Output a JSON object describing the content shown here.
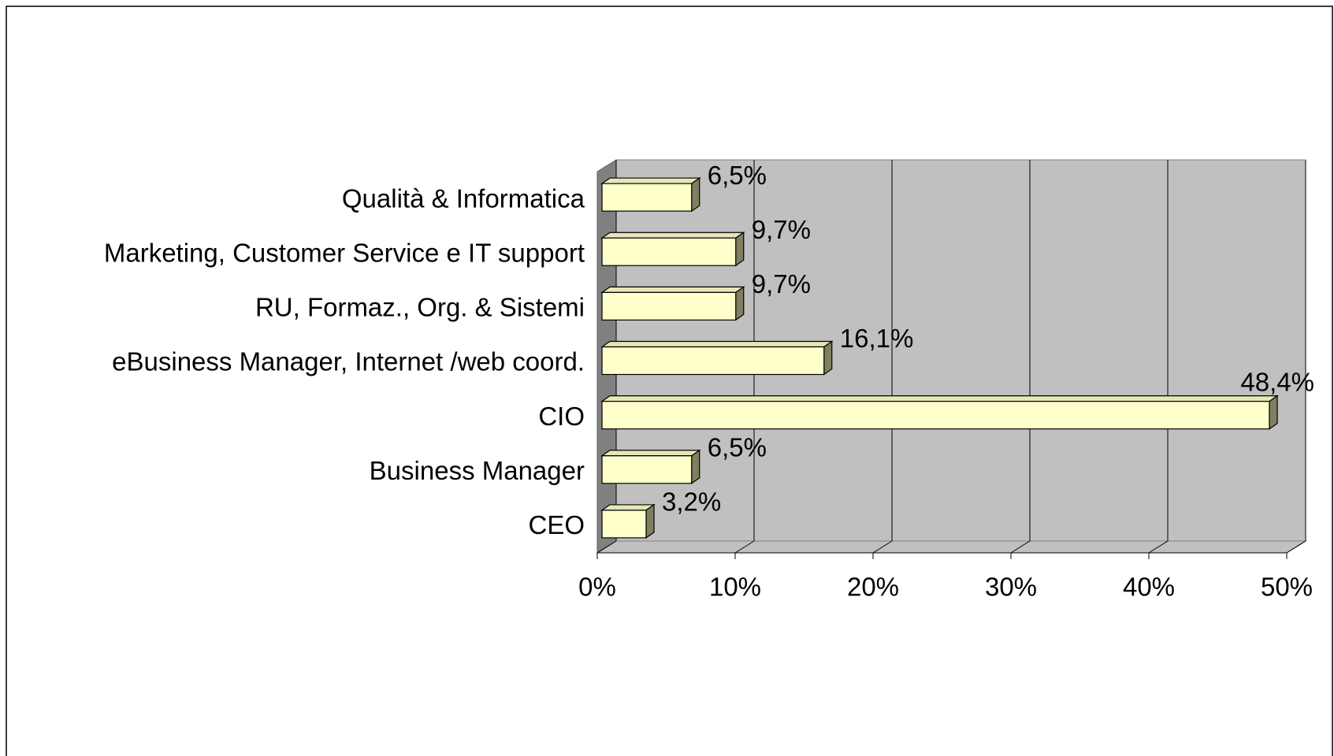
{
  "chart_data": {
    "type": "bar",
    "orientation": "horizontal",
    "categories": [
      "Qualità & Informatica",
      "Marketing, Customer Service e IT support",
      "RU, Formaz., Org. & Sistemi",
      "eBusiness Manager, Internet /web coord.",
      "CIO",
      "Business Manager",
      "CEO"
    ],
    "values": [
      6.5,
      9.7,
      9.7,
      16.1,
      48.4,
      6.5,
      3.2
    ],
    "value_labels": [
      "6,5%",
      "9,7%",
      "9,7%",
      "16,1%",
      "48,4%",
      "6,5%",
      "3,2%"
    ],
    "color": "#ffffcc",
    "xlim": [
      0,
      50
    ],
    "xticks": [
      {
        "value": 0,
        "label": "0%"
      },
      {
        "value": 10,
        "label": "10%"
      },
      {
        "value": 20,
        "label": "20%"
      },
      {
        "value": 30,
        "label": "30%"
      },
      {
        "value": 40,
        "label": "40%"
      },
      {
        "value": 50,
        "label": "50%"
      }
    ],
    "grid": true
  }
}
